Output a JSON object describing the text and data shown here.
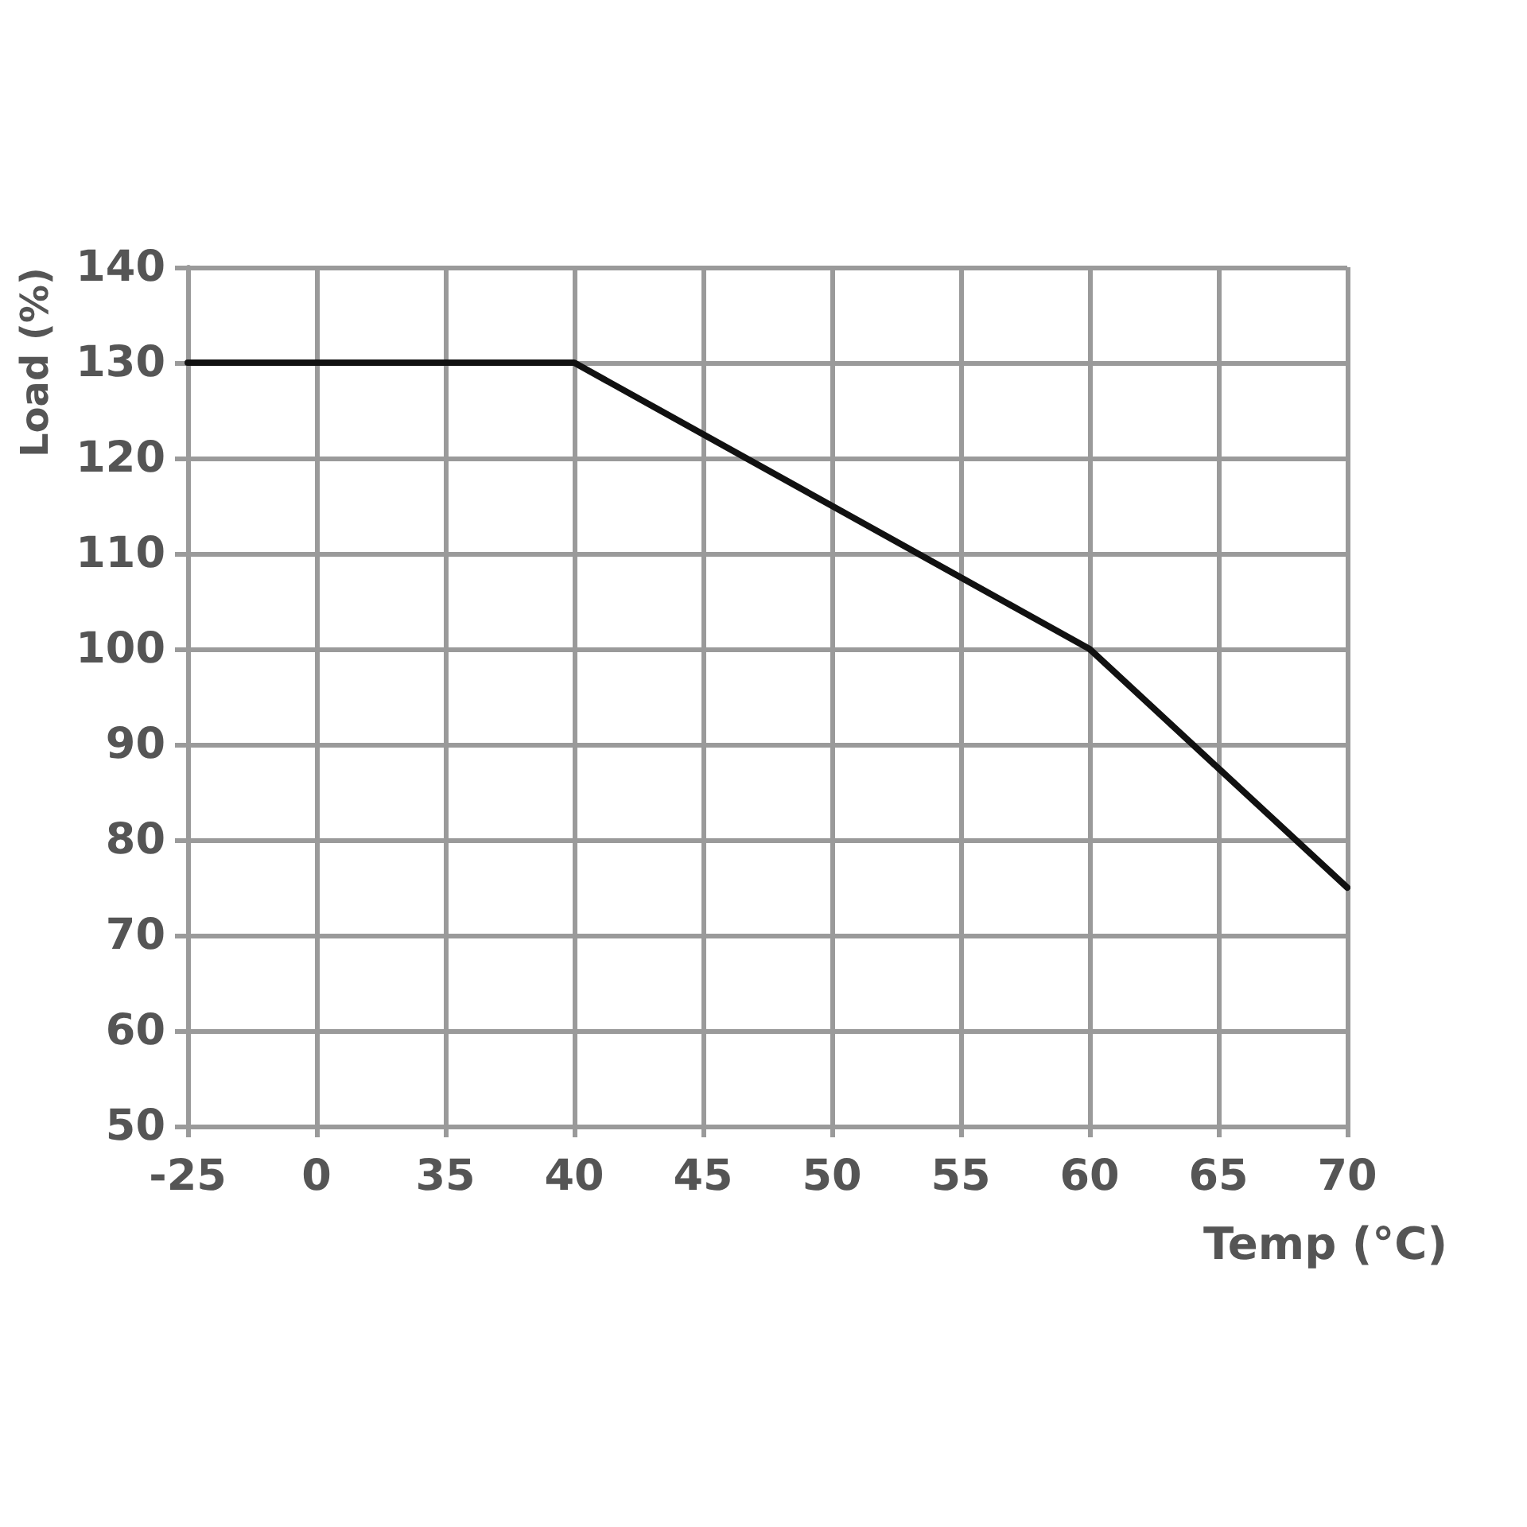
{
  "chart_data": {
    "type": "line",
    "ylabel": "Load (%)",
    "xlabel": "Temp (°C)",
    "categories": [
      "-25",
      "0",
      "35",
      "40",
      "45",
      "50",
      "55",
      "60",
      "65",
      "70"
    ],
    "series": [
      {
        "color": "#111111",
        "values": [
          130,
          130,
          130,
          130,
          122.5,
          115,
          107.5,
          100,
          87.5,
          75
        ]
      }
    ],
    "ylim": [
      50,
      140
    ],
    "yticks": [
      50,
      60,
      70,
      80,
      90,
      100,
      110,
      120,
      130,
      140
    ],
    "grid": true,
    "marker": "none",
    "line_style": "solid"
  }
}
